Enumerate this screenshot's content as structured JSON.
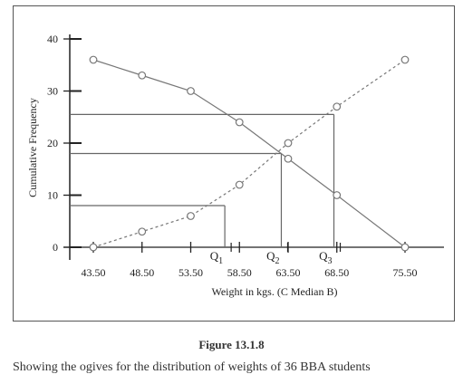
{
  "chart_data": {
    "type": "line",
    "title": "",
    "xlabel": "Weight in kgs. (C Median B)",
    "ylabel": "Cumulative Frequency",
    "x_ticks": [
      "43.50",
      "48.50",
      "53.50",
      "58.50",
      "63.50",
      "68.50",
      "75.50"
    ],
    "y_ticks": [
      0,
      10,
      20,
      30,
      40
    ],
    "xlim": [
      43.5,
      75.5
    ],
    "ylim": [
      0,
      40
    ],
    "grid": false,
    "series": [
      {
        "style": "solid",
        "x": [
          43.5,
          48.5,
          53.5,
          58.5,
          63.5,
          68.5,
          75.5
        ],
        "y": [
          36,
          33,
          30,
          24,
          17,
          10,
          0
        ]
      },
      {
        "style": "dotted",
        "x": [
          43.5,
          48.5,
          53.5,
          58.5,
          63.5,
          68.5,
          75.5
        ],
        "y": [
          0,
          3,
          6,
          12,
          20,
          27,
          36
        ]
      }
    ],
    "quartiles": [
      {
        "label": "Q",
        "sub": "1",
        "x": 57.0,
        "y": 8
      },
      {
        "label": "Q",
        "sub": "2",
        "x": 62.8,
        "y": 18
      },
      {
        "label": "Q",
        "sub": "3",
        "x": 68.2,
        "y": 25.5
      }
    ]
  },
  "figure_label": "Figure 13.1.8",
  "caption": "Showing the ogives for the distribution of weights of 36 BBA students"
}
